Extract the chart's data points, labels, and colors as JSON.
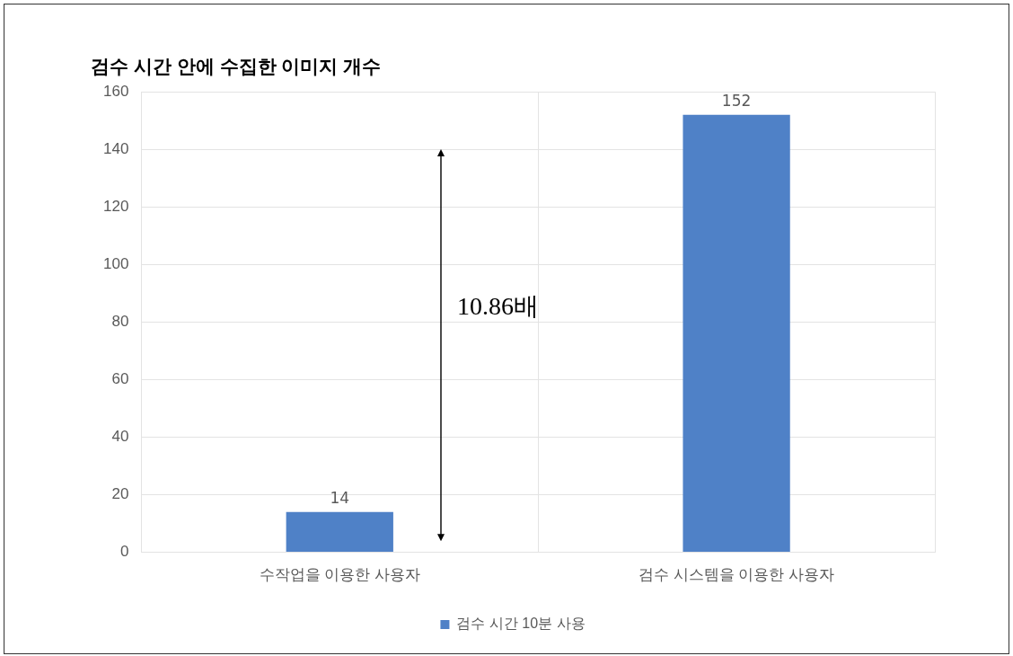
{
  "chart_data": {
    "type": "bar",
    "title": "검수 시간 안에 수집한 이미지 개수",
    "categories": [
      "수작업을 이용한 사용자",
      "검수 시스템을 이용한 사용자"
    ],
    "series": [
      {
        "name": "검수 시간 10분 사용",
        "color": "#4f81c7",
        "values": [
          14,
          152
        ]
      }
    ],
    "ylim": [
      0,
      160
    ],
    "yticks": [
      0,
      20,
      40,
      60,
      80,
      100,
      120,
      140,
      160
    ],
    "grid": true,
    "legend": "bottom",
    "data_labels": true,
    "annotations": [
      "10.86배"
    ]
  }
}
